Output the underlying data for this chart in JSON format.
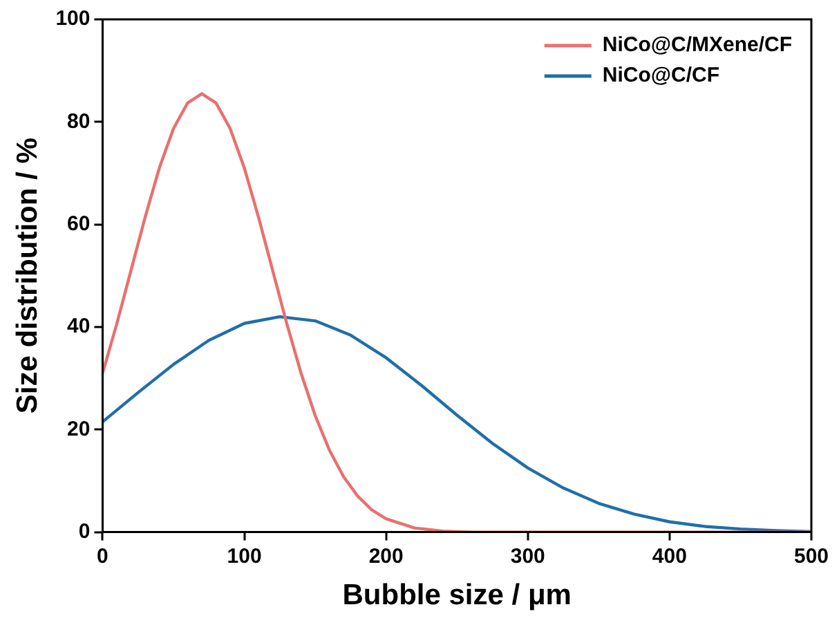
{
  "chart_data": {
    "type": "line",
    "xlabel": "Bubble size / μm",
    "ylabel": "Size distribution / %",
    "xlim": [
      0,
      500
    ],
    "ylim": [
      0,
      100
    ],
    "xticks": [
      0,
      100,
      200,
      300,
      400,
      500
    ],
    "yticks": [
      0,
      20,
      40,
      60,
      80,
      100
    ],
    "grid": false,
    "legend": "top right",
    "marker": "none",
    "line_style": "solid",
    "series": [
      {
        "name": "NiCo@C/MXene/CF",
        "color": "#e8706e",
        "x": [
          0,
          10,
          20,
          30,
          40,
          50,
          60,
          70,
          80,
          90,
          100,
          110,
          120,
          130,
          140,
          150,
          160,
          170,
          180,
          190,
          200,
          220,
          240,
          260,
          300,
          400,
          500
        ],
        "values": [
          31.0,
          40.6,
          51.0,
          61.4,
          71.0,
          78.7,
          83.7,
          85.5,
          83.7,
          78.7,
          71.0,
          61.4,
          51.0,
          40.6,
          31.0,
          22.7,
          16.0,
          10.8,
          7.0,
          4.3,
          2.6,
          0.8,
          0.2,
          0,
          0,
          0,
          0
        ]
      },
      {
        "name": "NiCo@C/CF",
        "color": "#1f6fa8",
        "x": [
          0,
          25,
          50,
          75,
          100,
          125,
          150,
          175,
          200,
          225,
          250,
          275,
          300,
          325,
          350,
          375,
          400,
          425,
          450,
          475,
          500
        ],
        "values": [
          21.5,
          27.2,
          32.7,
          37.4,
          40.7,
          42.0,
          41.2,
          38.4,
          34.0,
          28.6,
          22.8,
          17.3,
          12.5,
          8.6,
          5.6,
          3.5,
          2.0,
          1.1,
          0.6,
          0.3,
          0.1
        ]
      }
    ]
  }
}
